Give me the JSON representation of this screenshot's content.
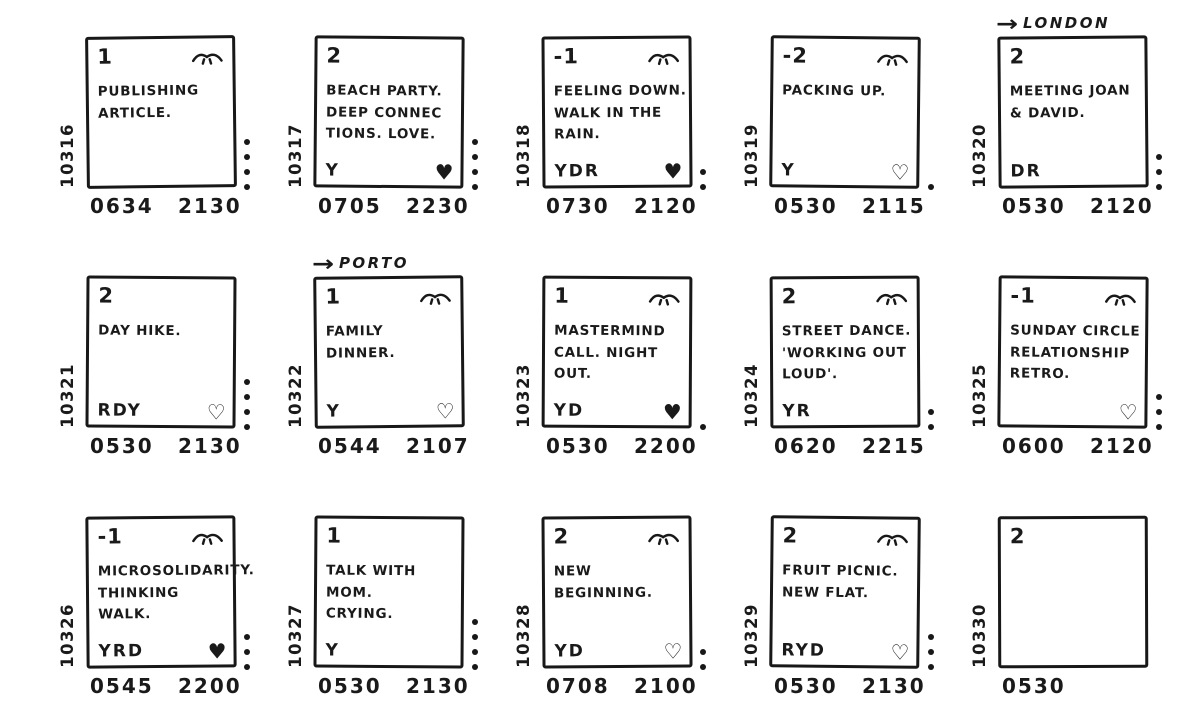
{
  "page": {
    "title": "Hand-drawn daily journal grid",
    "paper_color": "#ffffff",
    "ink_color": "#1a1a1a"
  },
  "icons": {
    "arrow_right": "→",
    "heart_filled": "♥",
    "heart_outline": "♡",
    "closed_eye": "closed-eye-with-lashes",
    "dot": "tally-dot"
  },
  "cards": [
    {
      "id": "10316",
      "score": "1",
      "eye": true,
      "lines": [
        "PUBLISHING",
        "ARTICLE."
      ],
      "letters": "",
      "heart": "none",
      "dots": 4,
      "wake": "0634",
      "sleep": "2130",
      "trip": ""
    },
    {
      "id": "10317",
      "score": "2",
      "eye": false,
      "lines": [
        "BEACH PARTY.",
        "DEEP CONNEC",
        "TIONS. LOVE."
      ],
      "letters": "Y",
      "heart": "filled",
      "dots": 4,
      "wake": "0705",
      "sleep": "2230",
      "trip": ""
    },
    {
      "id": "10318",
      "score": "-1",
      "eye": true,
      "lines": [
        "FEELING DOWN.",
        "WALK IN THE",
        "RAIN."
      ],
      "letters": "YDR",
      "heart": "filled",
      "dots": 2,
      "wake": "0730",
      "sleep": "2120",
      "trip": ""
    },
    {
      "id": "10319",
      "score": "-2",
      "eye": true,
      "lines": [
        "PACKING UP."
      ],
      "letters": "Y",
      "heart": "outline",
      "dots": 1,
      "wake": "0530",
      "sleep": "2115",
      "trip": ""
    },
    {
      "id": "10320",
      "score": "2",
      "eye": false,
      "lines": [
        "MEETING JOAN",
        "& DAVID."
      ],
      "letters": "DR",
      "heart": "none",
      "dots": 3,
      "wake": "0530",
      "sleep": "2120",
      "trip": "LONDON"
    },
    {
      "id": "10321",
      "score": "2",
      "eye": false,
      "lines": [
        "DAY HIKE."
      ],
      "letters": "RDY",
      "heart": "outline",
      "dots": 4,
      "wake": "0530",
      "sleep": "2130",
      "trip": ""
    },
    {
      "id": "10322",
      "score": "1",
      "eye": true,
      "lines": [
        "FAMILY",
        "DINNER."
      ],
      "letters": "Y",
      "heart": "outline",
      "dots": 0,
      "wake": "0544",
      "sleep": "2107",
      "trip": "PORTO"
    },
    {
      "id": "10323",
      "score": "1",
      "eye": true,
      "lines": [
        "MASTERMIND",
        "CALL. NIGHT",
        "OUT."
      ],
      "letters": "YD",
      "heart": "filled",
      "dots": 1,
      "wake": "0530",
      "sleep": "2200",
      "trip": ""
    },
    {
      "id": "10324",
      "score": "2",
      "eye": true,
      "lines": [
        "STREET DANCE.",
        "'WORKING OUT",
        "LOUD'."
      ],
      "letters": "YR",
      "heart": "none",
      "dots": 2,
      "wake": "0620",
      "sleep": "2215",
      "trip": ""
    },
    {
      "id": "10325",
      "score": "-1",
      "eye": true,
      "lines": [
        "SUNDAY CIRCLE",
        "RELATIONSHIP",
        "RETRO."
      ],
      "letters": "",
      "heart": "outline",
      "dots": 3,
      "wake": "0600",
      "sleep": "2120",
      "trip": ""
    },
    {
      "id": "10326",
      "score": "-1",
      "eye": true,
      "lines": [
        "MICROSOLIDARITY.",
        "THINKING",
        "WALK."
      ],
      "letters": "YRD",
      "heart": "filled",
      "dots": 3,
      "wake": "0545",
      "sleep": "2200",
      "trip": ""
    },
    {
      "id": "10327",
      "score": "1",
      "eye": false,
      "lines": [
        "TALK WITH MOM.",
        "CRYING."
      ],
      "letters": "Y",
      "heart": "none",
      "dots": 4,
      "wake": "0530",
      "sleep": "2130",
      "trip": ""
    },
    {
      "id": "10328",
      "score": "2",
      "eye": true,
      "lines": [
        "NEW",
        "BEGINNING."
      ],
      "letters": "YD",
      "heart": "outline",
      "dots": 2,
      "wake": "0708",
      "sleep": "2100",
      "trip": ""
    },
    {
      "id": "10329",
      "score": "2",
      "eye": true,
      "lines": [
        "FRUIT PICNIC.",
        "NEW FLAT."
      ],
      "letters": "RYD",
      "heart": "outline",
      "dots": 3,
      "wake": "0530",
      "sleep": "2130",
      "trip": ""
    },
    {
      "id": "10330",
      "score": "2",
      "eye": false,
      "lines": [],
      "letters": "",
      "heart": "none",
      "dots": 0,
      "wake": "0530",
      "sleep": "",
      "trip": ""
    }
  ]
}
